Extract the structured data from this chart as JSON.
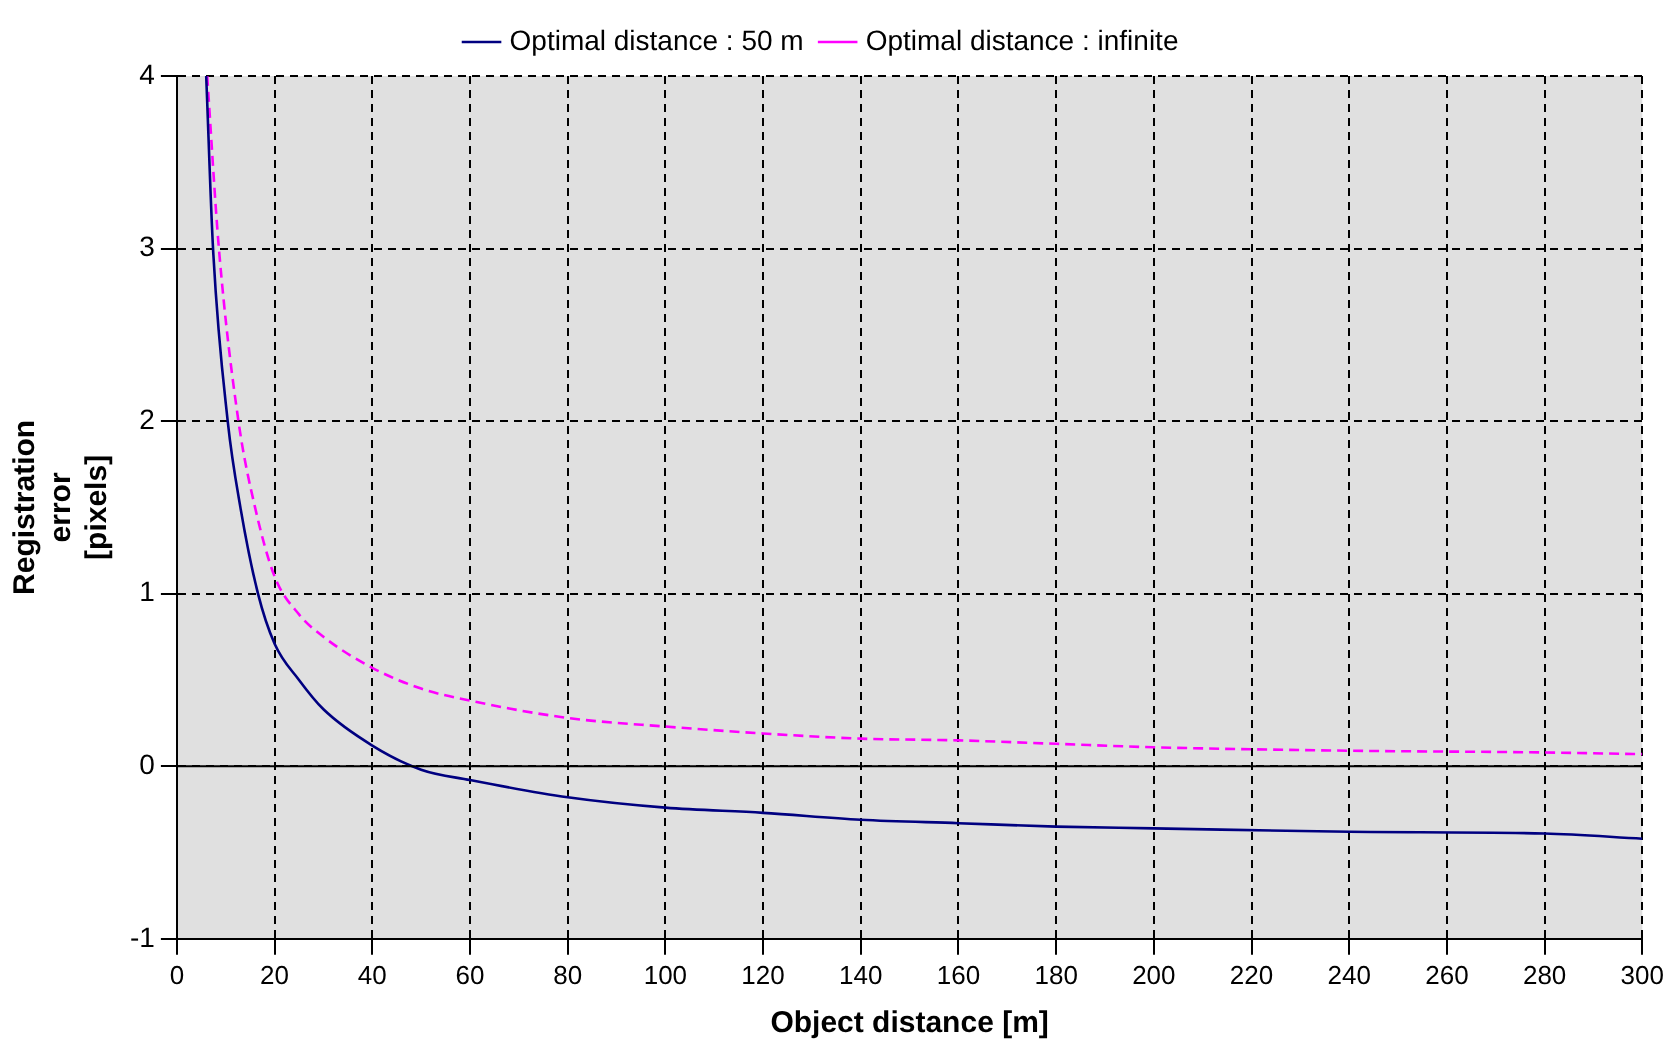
{
  "chart_data": {
    "type": "line",
    "xlabel": "Object distance [m]",
    "ylabel": "Registration error [pixels]",
    "xlim": [
      0,
      300
    ],
    "xticks": [
      0,
      20,
      40,
      60,
      80,
      100,
      120,
      140,
      160,
      180,
      200,
      220,
      240,
      260,
      280,
      300
    ],
    "ylim": [
      -1,
      4
    ],
    "yticks": [
      -1,
      0,
      1,
      2,
      3,
      4
    ],
    "grid": true,
    "legend": "top",
    "marker": "none",
    "ref_lines": [
      {
        "axis": "y",
        "value": 0,
        "color": "#000000",
        "line_style": "solid"
      }
    ],
    "series": [
      {
        "name": "Optimal distance : 50 m",
        "color": "#000080",
        "line_style": "solid",
        "x": [
          6,
          7.4,
          10.4,
          13,
          16.6,
          20,
          25,
          30,
          40,
          50,
          60,
          80,
          100,
          120,
          140,
          160,
          180,
          200,
          240,
          280,
          300
        ],
        "values": [
          4,
          3,
          2,
          1.5,
          1,
          0.71,
          0.5,
          0.33,
          0.12,
          -0.02,
          -0.08,
          -0.18,
          -0.24,
          -0.27,
          -0.31,
          -0.33,
          -0.35,
          -0.36,
          -0.38,
          -0.39,
          -0.42
        ]
      },
      {
        "name": "Optimal distance : infinite",
        "color": "#ff00ff",
        "line_style": "dashed",
        "x": [
          6.2,
          8.6,
          12.6,
          16,
          20,
          25,
          30,
          40,
          50,
          60,
          80,
          100,
          120,
          140,
          160,
          180,
          200,
          240,
          280,
          300
        ],
        "values": [
          4,
          3,
          2,
          1.5,
          1.1,
          0.88,
          0.75,
          0.57,
          0.45,
          0.38,
          0.28,
          0.23,
          0.19,
          0.16,
          0.15,
          0.13,
          0.11,
          0.09,
          0.08,
          0.07
        ]
      }
    ]
  }
}
